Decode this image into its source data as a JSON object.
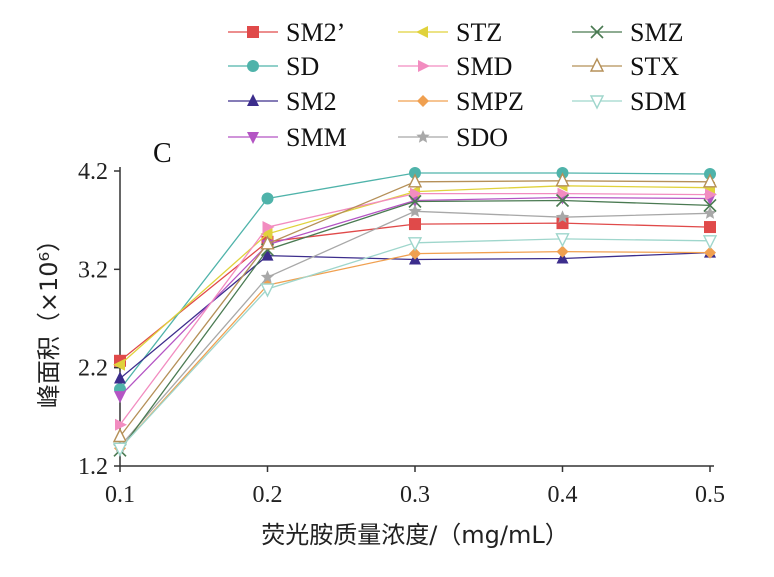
{
  "chart_data": {
    "type": "line",
    "panel_label": "C",
    "xlabel": "荧光胺质量浓度/（mg/mL）",
    "ylabel": "峰面积（×10⁶）",
    "x": [
      0.1,
      0.2,
      0.3,
      0.4,
      0.5
    ],
    "xticks": [
      "0.1",
      "0.2",
      "0.3",
      "0.4",
      "0.5"
    ],
    "xlim": [
      0.1,
      0.5
    ],
    "yticks": [
      "1.2",
      "2.2",
      "3.2",
      "4.2"
    ],
    "ylim": [
      1.2,
      4.2
    ],
    "grid": false,
    "legend_position": "top",
    "series": [
      {
        "name": "SM2’",
        "color": "#e04a4a",
        "marker": "square",
        "values": [
          2.27,
          3.48,
          3.66,
          3.67,
          3.63
        ]
      },
      {
        "name": "SD",
        "color": "#4fb3aa",
        "marker": "circle",
        "values": [
          1.98,
          3.92,
          4.18,
          4.18,
          4.17
        ]
      },
      {
        "name": "SM2",
        "color": "#3c2d8c",
        "marker": "triangle-up",
        "values": [
          2.09,
          3.34,
          3.3,
          3.31,
          3.37
        ]
      },
      {
        "name": "SMM",
        "color": "#b455c4",
        "marker": "triangle-down",
        "values": [
          1.91,
          3.45,
          3.9,
          3.93,
          3.92
        ]
      },
      {
        "name": "STZ",
        "color": "#e0d23c",
        "marker": "triangle-left",
        "values": [
          2.23,
          3.56,
          3.99,
          4.05,
          4.03
        ]
      },
      {
        "name": "SMD",
        "color": "#f28cc0",
        "marker": "triangle-right",
        "values": [
          1.62,
          3.63,
          3.97,
          3.97,
          3.96
        ]
      },
      {
        "name": "SMPZ",
        "color": "#f0a050",
        "marker": "diamond",
        "values": [
          1.38,
          3.04,
          3.36,
          3.38,
          3.37
        ]
      },
      {
        "name": "SDO",
        "color": "#a8a8a8",
        "marker": "star",
        "values": [
          1.4,
          3.12,
          3.79,
          3.73,
          3.77
        ]
      },
      {
        "name": "SMZ",
        "color": "#4a7a52",
        "marker": "x",
        "values": [
          1.36,
          3.4,
          3.89,
          3.9,
          3.85
        ]
      },
      {
        "name": "STX",
        "color": "#b59058",
        "marker": "triangle-up-open",
        "values": [
          1.5,
          3.46,
          4.09,
          4.1,
          4.09
        ]
      },
      {
        "name": "SDM",
        "color": "#9fd6cc",
        "marker": "triangle-down-open",
        "values": [
          1.38,
          3.0,
          3.47,
          3.51,
          3.49
        ]
      }
    ]
  }
}
